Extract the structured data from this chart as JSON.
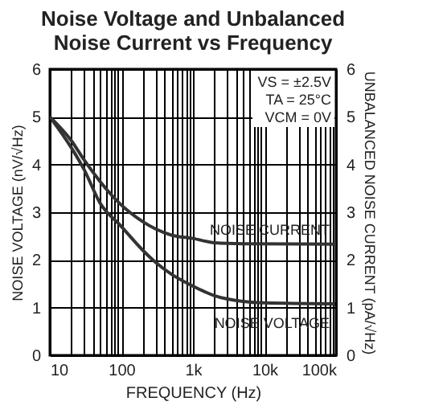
{
  "chart_data": {
    "type": "line",
    "title": "Noise Voltage and Unbalanced Noise Current vs Frequency",
    "xlabel": "FREQUENCY (Hz)",
    "ylabel": "NOISE VOLTAGE (nV/√Hz)",
    "y2label": "UNBALANCED NOISE CURRENT (pA/√Hz)",
    "series": [
      {
        "name": "NOISE CURRENT",
        "color": "#333333",
        "axis": "y2",
        "x": [
          10,
          20,
          30,
          50,
          100,
          200,
          300,
          500,
          1000,
          2000,
          5000,
          100000
        ],
        "values": [
          5,
          4.5,
          4.1,
          3.65,
          3.15,
          2.8,
          2.65,
          2.52,
          2.45,
          2.36,
          2.34,
          2.33
        ]
      },
      {
        "name": "NOISE VOLTAGE",
        "color": "#333333",
        "x": [
          10,
          20,
          30,
          50,
          100,
          200,
          300,
          500,
          1000,
          2000,
          5000,
          10000,
          100000
        ],
        "values": [
          5,
          4.35,
          3.9,
          3.2,
          2.7,
          2.2,
          1.95,
          1.7,
          1.45,
          1.25,
          1.13,
          1.1,
          1.08
        ]
      }
    ],
    "log": "x",
    "xlim": [
      10,
      100000
    ],
    "xticks": [
      {
        "value": 10,
        "label": "10"
      },
      {
        "value": 20,
        "label": null
      },
      {
        "value": 30,
        "label": null
      },
      {
        "value": 40,
        "label": null
      },
      {
        "value": 50,
        "label": null
      },
      {
        "value": 60,
        "label": null
      },
      {
        "value": 70,
        "label": null
      },
      {
        "value": 80,
        "label": null
      },
      {
        "value": 90,
        "label": null
      },
      {
        "value": 100,
        "label": "100"
      },
      {
        "value": 200,
        "label": null
      },
      {
        "value": 300,
        "label": null
      },
      {
        "value": 400,
        "label": null
      },
      {
        "value": 500,
        "label": null
      },
      {
        "value": 600,
        "label": null
      },
      {
        "value": 700,
        "label": null
      },
      {
        "value": 800,
        "label": null
      },
      {
        "value": 900,
        "label": null
      },
      {
        "value": 1000,
        "label": "1k"
      },
      {
        "value": 2000,
        "label": null
      },
      {
        "value": 3000,
        "label": null
      },
      {
        "value": 4000,
        "label": null
      },
      {
        "value": 5000,
        "label": null
      },
      {
        "value": 6000,
        "label": null
      },
      {
        "value": 7000,
        "label": null
      },
      {
        "value": 8000,
        "label": null
      },
      {
        "value": 9000,
        "label": null
      },
      {
        "value": 10000,
        "label": "10k"
      },
      {
        "value": 20000,
        "label": null
      },
      {
        "value": 30000,
        "label": null
      },
      {
        "value": 40000,
        "label": null
      },
      {
        "value": 50000,
        "label": null
      },
      {
        "value": 60000,
        "label": null
      },
      {
        "value": 70000,
        "label": null
      },
      {
        "value": 80000,
        "label": null
      },
      {
        "value": 90000,
        "label": null
      },
      {
        "value": 100000,
        "label": "100k"
      }
    ],
    "ylim": [
      0,
      6
    ],
    "yticks": [
      0,
      1,
      2,
      3,
      4,
      5,
      6
    ],
    "y2lim": [
      0,
      6
    ],
    "y2ticks": [
      0,
      1,
      2,
      3,
      4,
      5,
      6
    ],
    "grid": true,
    "legend": false,
    "line_style": "solid",
    "marker": "none",
    "annotations": [
      "VS = ±2.5V",
      "TA = 25°C",
      "VCM = 0V"
    ]
  }
}
